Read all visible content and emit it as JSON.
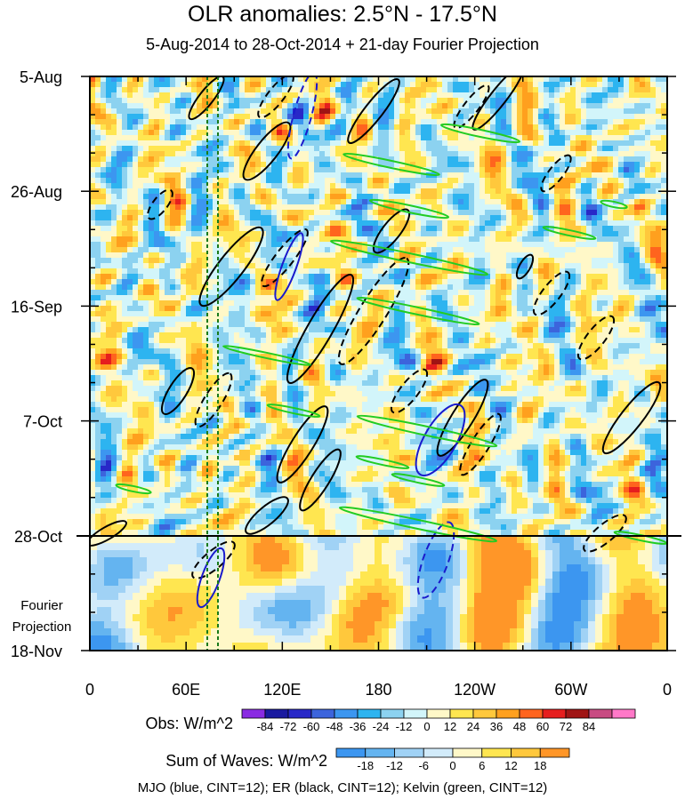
{
  "chart_data": {
    "type": "heatmap",
    "title": "OLR anomalies: 2.5°N - 17.5°N",
    "subtitle": "5-Aug-2014 to 28-Oct-2014 + 21-day Fourier Projection",
    "x_axis": {
      "ticks": [
        "0",
        "60E",
        "120E",
        "180",
        "120W",
        "60W",
        "0"
      ],
      "tick_values_deg": [
        0,
        60,
        120,
        180,
        240,
        300,
        360
      ],
      "range_deg": [
        0,
        360
      ]
    },
    "y_axis": {
      "ticks": [
        "5-Aug",
        "26-Aug",
        "16-Sep",
        "7-Oct",
        "28-Oct",
        "18-Nov"
      ],
      "range": [
        "5-Aug-2014",
        "18-Nov-2014"
      ],
      "reversed": true,
      "projection_label_line1": "Fourier",
      "projection_label_line2": "Projection"
    },
    "observed_end": "28-Oct",
    "obs_colorbar": {
      "label": "Obs: W/m^2",
      "levels": [
        "-84",
        "-72",
        "-60",
        "-48",
        "-36",
        "-24",
        "-12",
        "0",
        "12",
        "24",
        "36",
        "48",
        "60",
        "72",
        "84"
      ],
      "colors": [
        "#8a2be2",
        "#1a1aa0",
        "#2828c8",
        "#3c64dc",
        "#3c96f0",
        "#2db4f0",
        "#8cd2f0",
        "#d2f5fa",
        "#fff8c8",
        "#ffe650",
        "#ffc83c",
        "#ffa01e",
        "#ff641e",
        "#e61e1e",
        "#a01414",
        "#c84b82",
        "#ff78c8"
      ]
    },
    "waves_colorbar": {
      "label": "Sum of Waves: W/m^2",
      "levels": [
        "-18",
        "-12",
        "-6",
        "0",
        "6",
        "12",
        "18"
      ],
      "colors": [
        "#3c96f0",
        "#64b4f0",
        "#a0d2f5",
        "#d2ebfa",
        "#fff8c8",
        "#ffe650",
        "#ffc83c",
        "#ff9628"
      ]
    },
    "contours_legend": "MJO (blue, CINT=12); ER (black, CINT=12); Kelvin (green, CINT=12)",
    "series": [
      {
        "name": "MJO",
        "color": "#1a1acc"
      },
      {
        "name": "ER",
        "color": "#000000"
      },
      {
        "name": "Kelvin",
        "color": "#22cc22"
      }
    ]
  }
}
